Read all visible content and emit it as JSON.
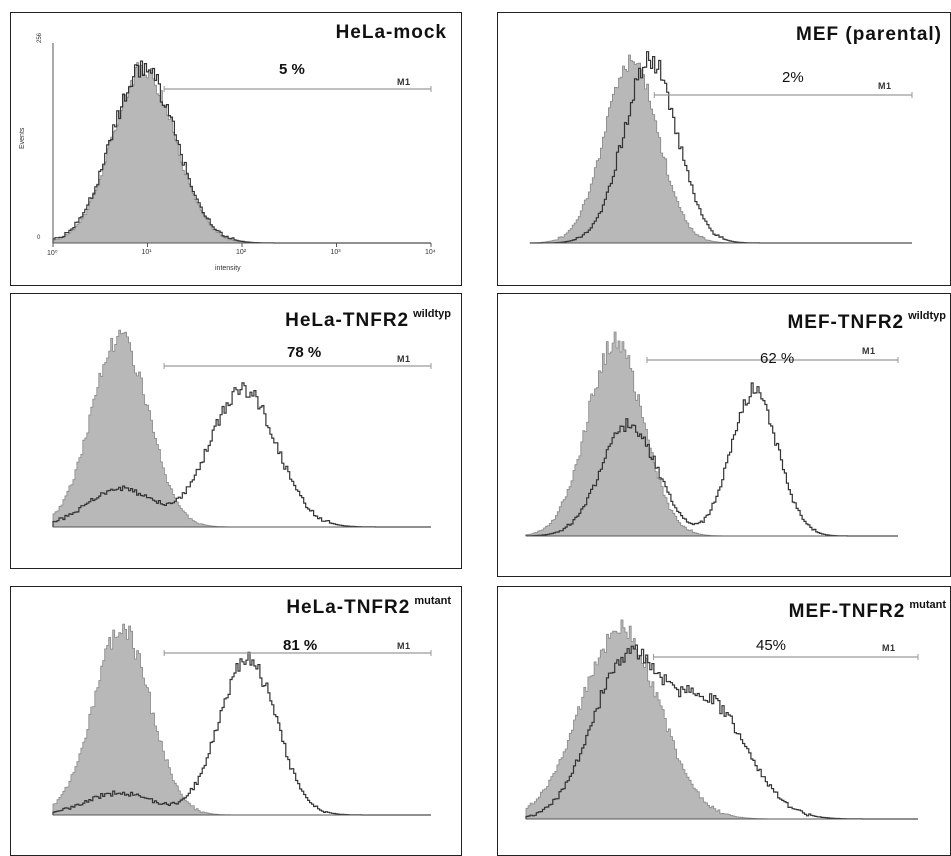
{
  "figure": {
    "background": "#ffffff",
    "fill_color": "#b8b8b8",
    "line_color": "#333333",
    "gate_color": "#9a9a9a"
  },
  "chart_data": [
    {
      "type": "area",
      "title": "HeLa-mock",
      "title_sup": "",
      "percent_label": "5 %",
      "gate_label": "M1",
      "xlabel": "intensity",
      "ylabel": "Events",
      "x_scale": "log",
      "xlim": [
        1,
        10000
      ],
      "x_tick_labels": [
        "10⁰",
        "10¹",
        "10²",
        "10³",
        "10⁴"
      ],
      "y_tick_labels": [
        "256",
        "0"
      ],
      "gate_range": [
        15,
        10000
      ],
      "series": [
        {
          "kind": "filled",
          "peaks": [
            {
              "center_log": 0.95,
              "width": 0.33,
              "height": 1.0
            }
          ]
        },
        {
          "kind": "outline",
          "peaks": [
            {
              "center_log": 0.95,
              "width": 0.34,
              "height": 1.0
            }
          ]
        }
      ]
    },
    {
      "type": "area",
      "title": "MEF (parental)",
      "title_sup": "",
      "percent_label": "2%",
      "gate_label": "M1",
      "x_scale": "log",
      "xlim": [
        1,
        10000
      ],
      "gate_range": [
        20,
        10000
      ],
      "series": [
        {
          "kind": "filled",
          "peaks": [
            {
              "center_log": 1.05,
              "width": 0.28,
              "height": 1.0
            }
          ]
        },
        {
          "kind": "outline",
          "peaks": [
            {
              "center_log": 1.25,
              "width": 0.28,
              "height": 1.0
            }
          ]
        }
      ]
    },
    {
      "type": "area",
      "title": "HeLa-TNFR2",
      "title_sup": "wildtyp",
      "percent_label": "78 %",
      "gate_label": "M1",
      "x_scale": "log",
      "xlim": [
        1,
        10000
      ],
      "gate_range": [
        15,
        10000
      ],
      "series": [
        {
          "kind": "filled",
          "peaks": [
            {
              "center_log": 0.7,
              "width": 0.3,
              "height": 1.0
            }
          ]
        },
        {
          "kind": "outline",
          "peaks": [
            {
              "center_log": 0.7,
              "width": 0.35,
              "height": 0.2
            },
            {
              "center_log": 2.0,
              "width": 0.35,
              "height": 0.72
            }
          ]
        }
      ]
    },
    {
      "type": "area",
      "title": "MEF-TNFR2",
      "title_sup": "wildtyp",
      "percent_label": "62 %",
      "gate_label": "M1",
      "x_scale": "log",
      "xlim": [
        1,
        10000
      ],
      "gate_range": [
        20,
        10000
      ],
      "series": [
        {
          "kind": "filled",
          "peaks": [
            {
              "center_log": 0.95,
              "width": 0.3,
              "height": 1.0
            }
          ]
        },
        {
          "kind": "outline",
          "peaks": [
            {
              "center_log": 1.1,
              "width": 0.3,
              "height": 0.58
            },
            {
              "center_log": 2.45,
              "width": 0.25,
              "height": 0.75
            }
          ]
        }
      ]
    },
    {
      "type": "area",
      "title": "HeLa-TNFR2",
      "title_sup": "mutant",
      "percent_label": "81 %",
      "gate_label": "M1",
      "x_scale": "log",
      "xlim": [
        1,
        10000
      ],
      "gate_range": [
        15,
        10000
      ],
      "series": [
        {
          "kind": "filled",
          "peaks": [
            {
              "center_log": 0.72,
              "width": 0.3,
              "height": 1.0
            }
          ]
        },
        {
          "kind": "outline",
          "peaks": [
            {
              "center_log": 0.7,
              "width": 0.35,
              "height": 0.12
            },
            {
              "center_log": 2.05,
              "width": 0.3,
              "height": 0.85
            }
          ]
        }
      ]
    },
    {
      "type": "area",
      "title": "MEF-TNFR2",
      "title_sup": "mutant",
      "percent_label": "45%",
      "gate_label": "M1",
      "x_scale": "log",
      "xlim": [
        1,
        10000
      ],
      "gate_range": [
        20,
        10000
      ],
      "series": [
        {
          "kind": "filled",
          "peaks": [
            {
              "center_log": 0.95,
              "width": 0.4,
              "height": 1.0
            }
          ]
        },
        {
          "kind": "outline",
          "peaks": [
            {
              "center_log": 1.0,
              "width": 0.35,
              "height": 0.8
            },
            {
              "center_log": 1.85,
              "width": 0.4,
              "height": 0.6
            }
          ]
        }
      ]
    }
  ]
}
